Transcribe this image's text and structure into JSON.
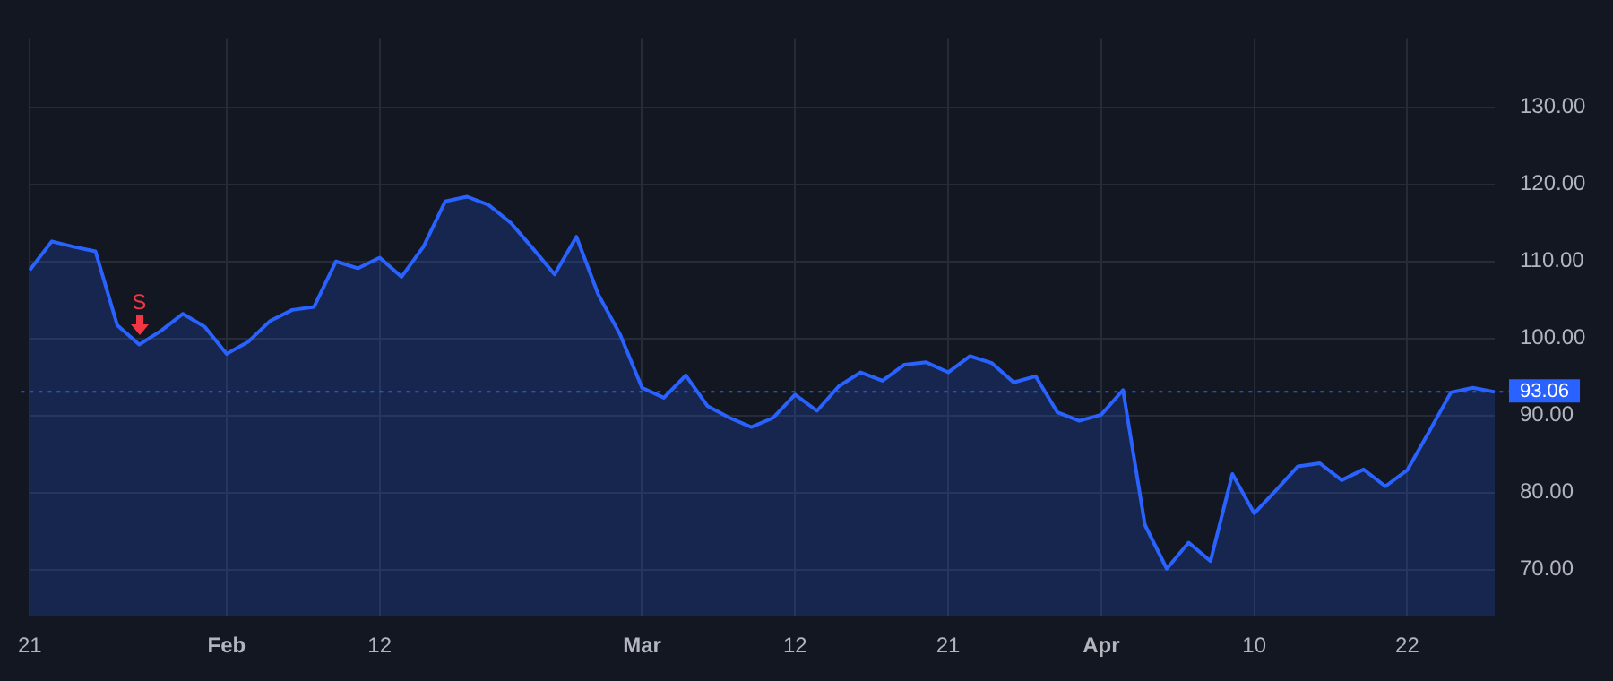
{
  "chart_data": {
    "type": "area",
    "categories": [
      "21",
      null,
      null,
      null,
      null,
      null,
      null,
      null,
      null,
      "Feb",
      null,
      null,
      null,
      null,
      null,
      null,
      "12",
      null,
      null,
      null,
      null,
      null,
      null,
      null,
      null,
      null,
      null,
      null,
      "Mar",
      null,
      null,
      null,
      null,
      null,
      null,
      "12",
      null,
      null,
      null,
      null,
      null,
      null,
      "21",
      null,
      null,
      null,
      null,
      null,
      null,
      "Apr",
      null,
      null,
      null,
      null,
      null,
      null,
      "10",
      null,
      null,
      null,
      null,
      null,
      null,
      "22",
      null,
      null,
      null,
      null
    ],
    "series": [
      {
        "color": "#2962ff",
        "values": [
          108.9,
          112.6,
          111.9,
          111.3,
          101.7,
          99.2,
          101.0,
          103.2,
          101.5,
          98.0,
          99.6,
          102.3,
          103.7,
          104.1,
          110.0,
          109.1,
          110.5,
          108.0,
          111.9,
          117.8,
          118.4,
          117.3,
          115.0,
          111.7,
          108.3,
          113.2,
          105.7,
          100.5,
          93.6,
          92.3,
          95.2,
          91.2,
          89.7,
          88.5,
          89.7,
          92.7,
          90.6,
          93.8,
          95.6,
          94.5,
          96.6,
          96.9,
          95.6,
          97.7,
          96.8,
          94.3,
          95.1,
          90.4,
          89.3,
          90.1,
          93.3,
          75.8,
          70.1,
          73.5,
          71.1,
          82.4,
          77.3,
          80.3,
          83.4,
          83.8,
          81.6,
          83.0,
          80.8,
          82.9,
          87.9,
          93.0,
          93.6,
          93.06
        ]
      }
    ],
    "ylim": [
      64,
      139
    ],
    "yticks": [
      {
        "value": 70,
        "label": "70.00"
      },
      {
        "value": 80,
        "label": "80.00"
      },
      {
        "value": 90,
        "label": "90.00"
      },
      {
        "value": 100,
        "label": "100.00"
      },
      {
        "value": 110,
        "label": "110.00"
      },
      {
        "value": 120,
        "label": "120.00"
      },
      {
        "value": 130,
        "label": "130.00"
      }
    ],
    "grid": true,
    "legend": false,
    "ref_lines": [
      {
        "axis": "y",
        "value": 93.06,
        "label": "93.06",
        "color": "#2962ff",
        "line_style": "dotted"
      }
    ],
    "annotations": [
      {
        "text": "S",
        "y": 99.2
      }
    ]
  }
}
